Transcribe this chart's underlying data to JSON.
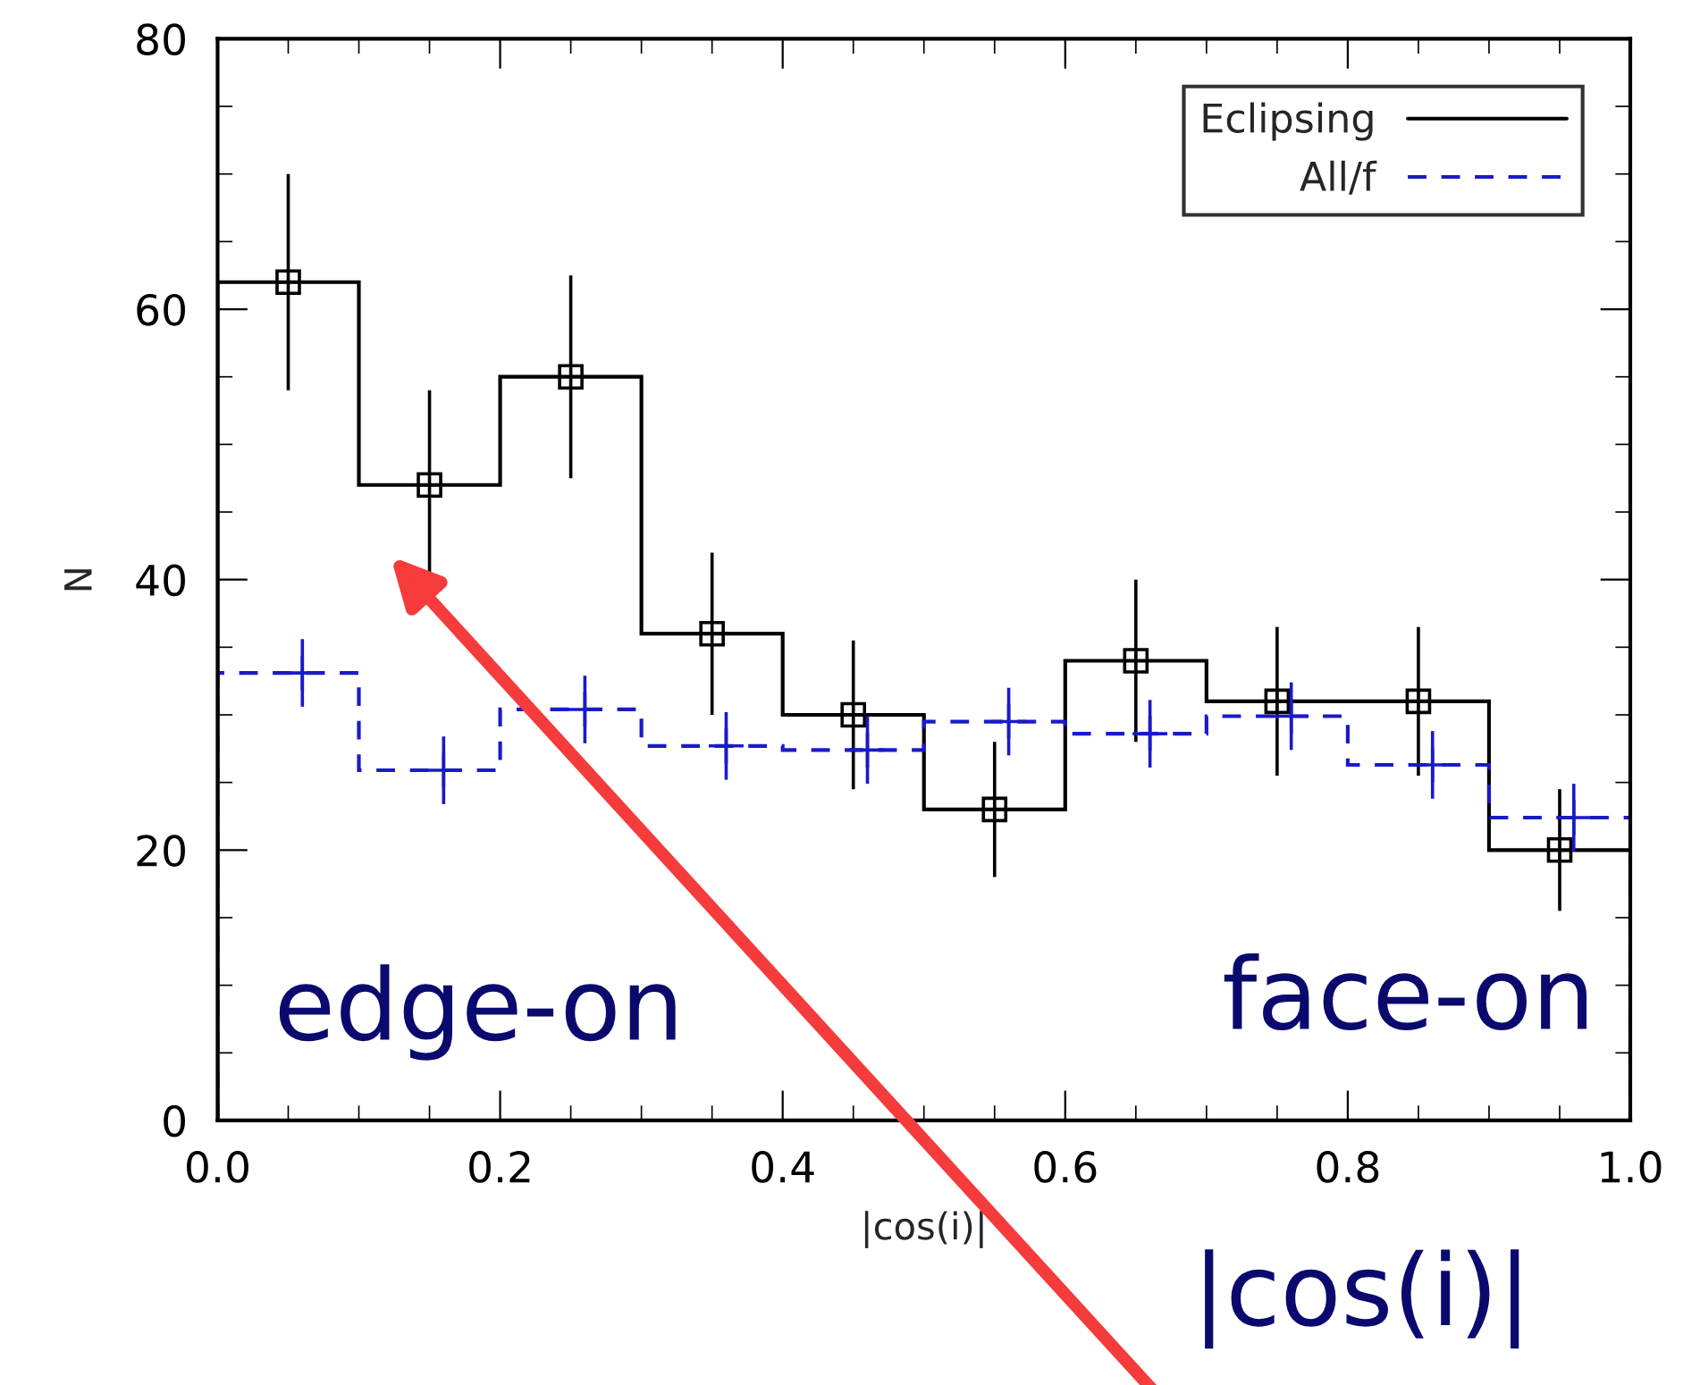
{
  "chart_data": {
    "type": "histogram",
    "xlabel": "|cos(i)|",
    "ylabel": "N",
    "bins": [
      0.0,
      0.1,
      0.2,
      0.3,
      0.4,
      0.5,
      0.6,
      0.7,
      0.8,
      0.9,
      1.0
    ],
    "series": [
      {
        "name": "Eclipsing",
        "color": "#000000",
        "line_style": "solid",
        "values": [
          62,
          47,
          55,
          36,
          30,
          23,
          34,
          31,
          31,
          20
        ]
      },
      {
        "type": "scatter",
        "color": "#000000",
        "marker": "square",
        "x": [
          0.05,
          0.15,
          0.25,
          0.35,
          0.45,
          0.55,
          0.65,
          0.75,
          0.85,
          0.95
        ],
        "values": [
          62,
          47,
          55,
          36,
          30,
          23,
          34,
          31,
          31,
          20
        ],
        "errors": [
          8,
          7,
          7.5,
          6,
          5.5,
          5,
          6,
          5.5,
          5.5,
          4.5
        ]
      },
      {
        "name": "All/f",
        "color": "#1a1ac8",
        "line_style": "dashed",
        "values": [
          33.1,
          25.9,
          30.4,
          27.7,
          27.4,
          29.5,
          28.6,
          29.9,
          26.3,
          22.4
        ]
      },
      {
        "type": "scatter",
        "color": "#1a1ac8",
        "marker": "cross",
        "x": [
          0.06,
          0.16,
          0.26,
          0.36,
          0.46,
          0.56,
          0.66,
          0.76,
          0.86,
          0.96
        ],
        "values": [
          33.1,
          25.9,
          30.4,
          27.7,
          27.4,
          29.5,
          28.6,
          29.9,
          26.3,
          22.4
        ],
        "errors": [
          2.5,
          2.5,
          2.5,
          2.5,
          2.5,
          2.5,
          2.5,
          2.5,
          2.5,
          2.5
        ]
      }
    ],
    "xlim": [
      0.0,
      1.0
    ],
    "xticks": [
      {
        "value": 0.0,
        "label": "0.0"
      },
      0.2,
      0.4,
      0.6,
      0.8,
      {
        "value": 1.0,
        "label": "1.0"
      }
    ],
    "ylim": [
      0,
      80
    ],
    "yticks": [
      0,
      20,
      40,
      60,
      80
    ],
    "grid": false,
    "legend": "top right",
    "annotations": [
      "edge-on",
      "face-on",
      "|cos(i)|"
    ]
  }
}
